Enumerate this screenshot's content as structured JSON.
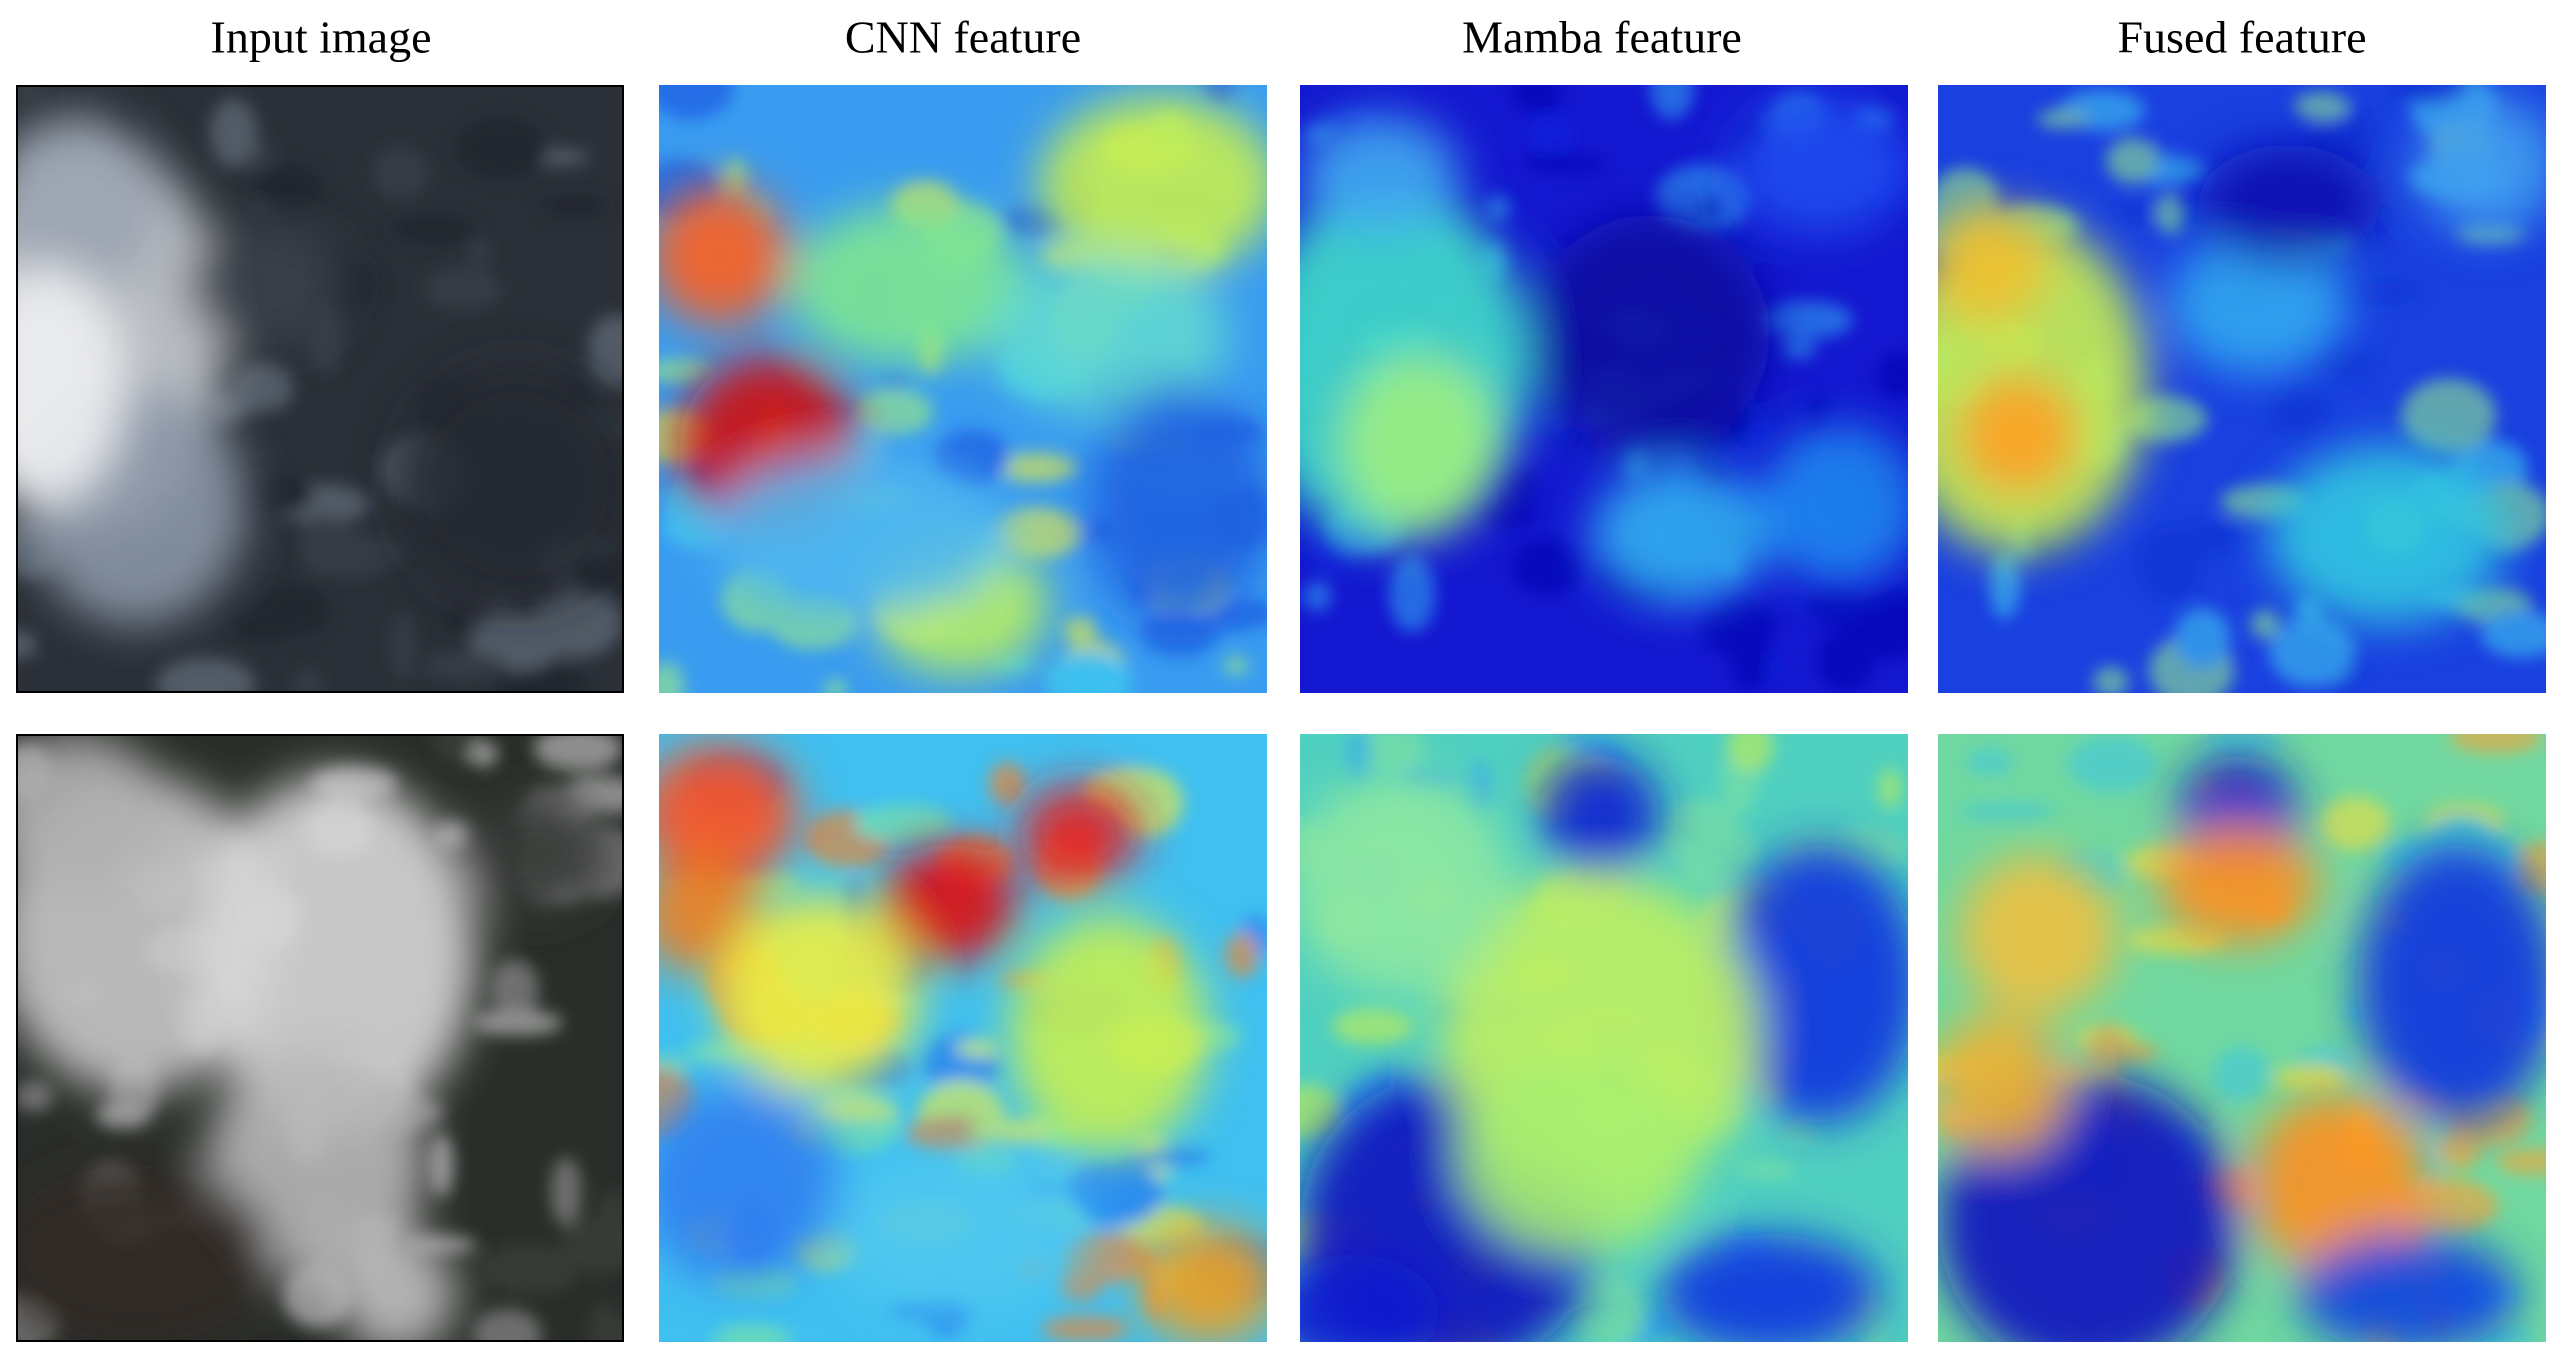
{
  "columns": [
    {
      "title": "Input image"
    },
    {
      "title": "CNN feature"
    },
    {
      "title": "Mamba feature"
    },
    {
      "title": "Fused feature"
    }
  ]
}
